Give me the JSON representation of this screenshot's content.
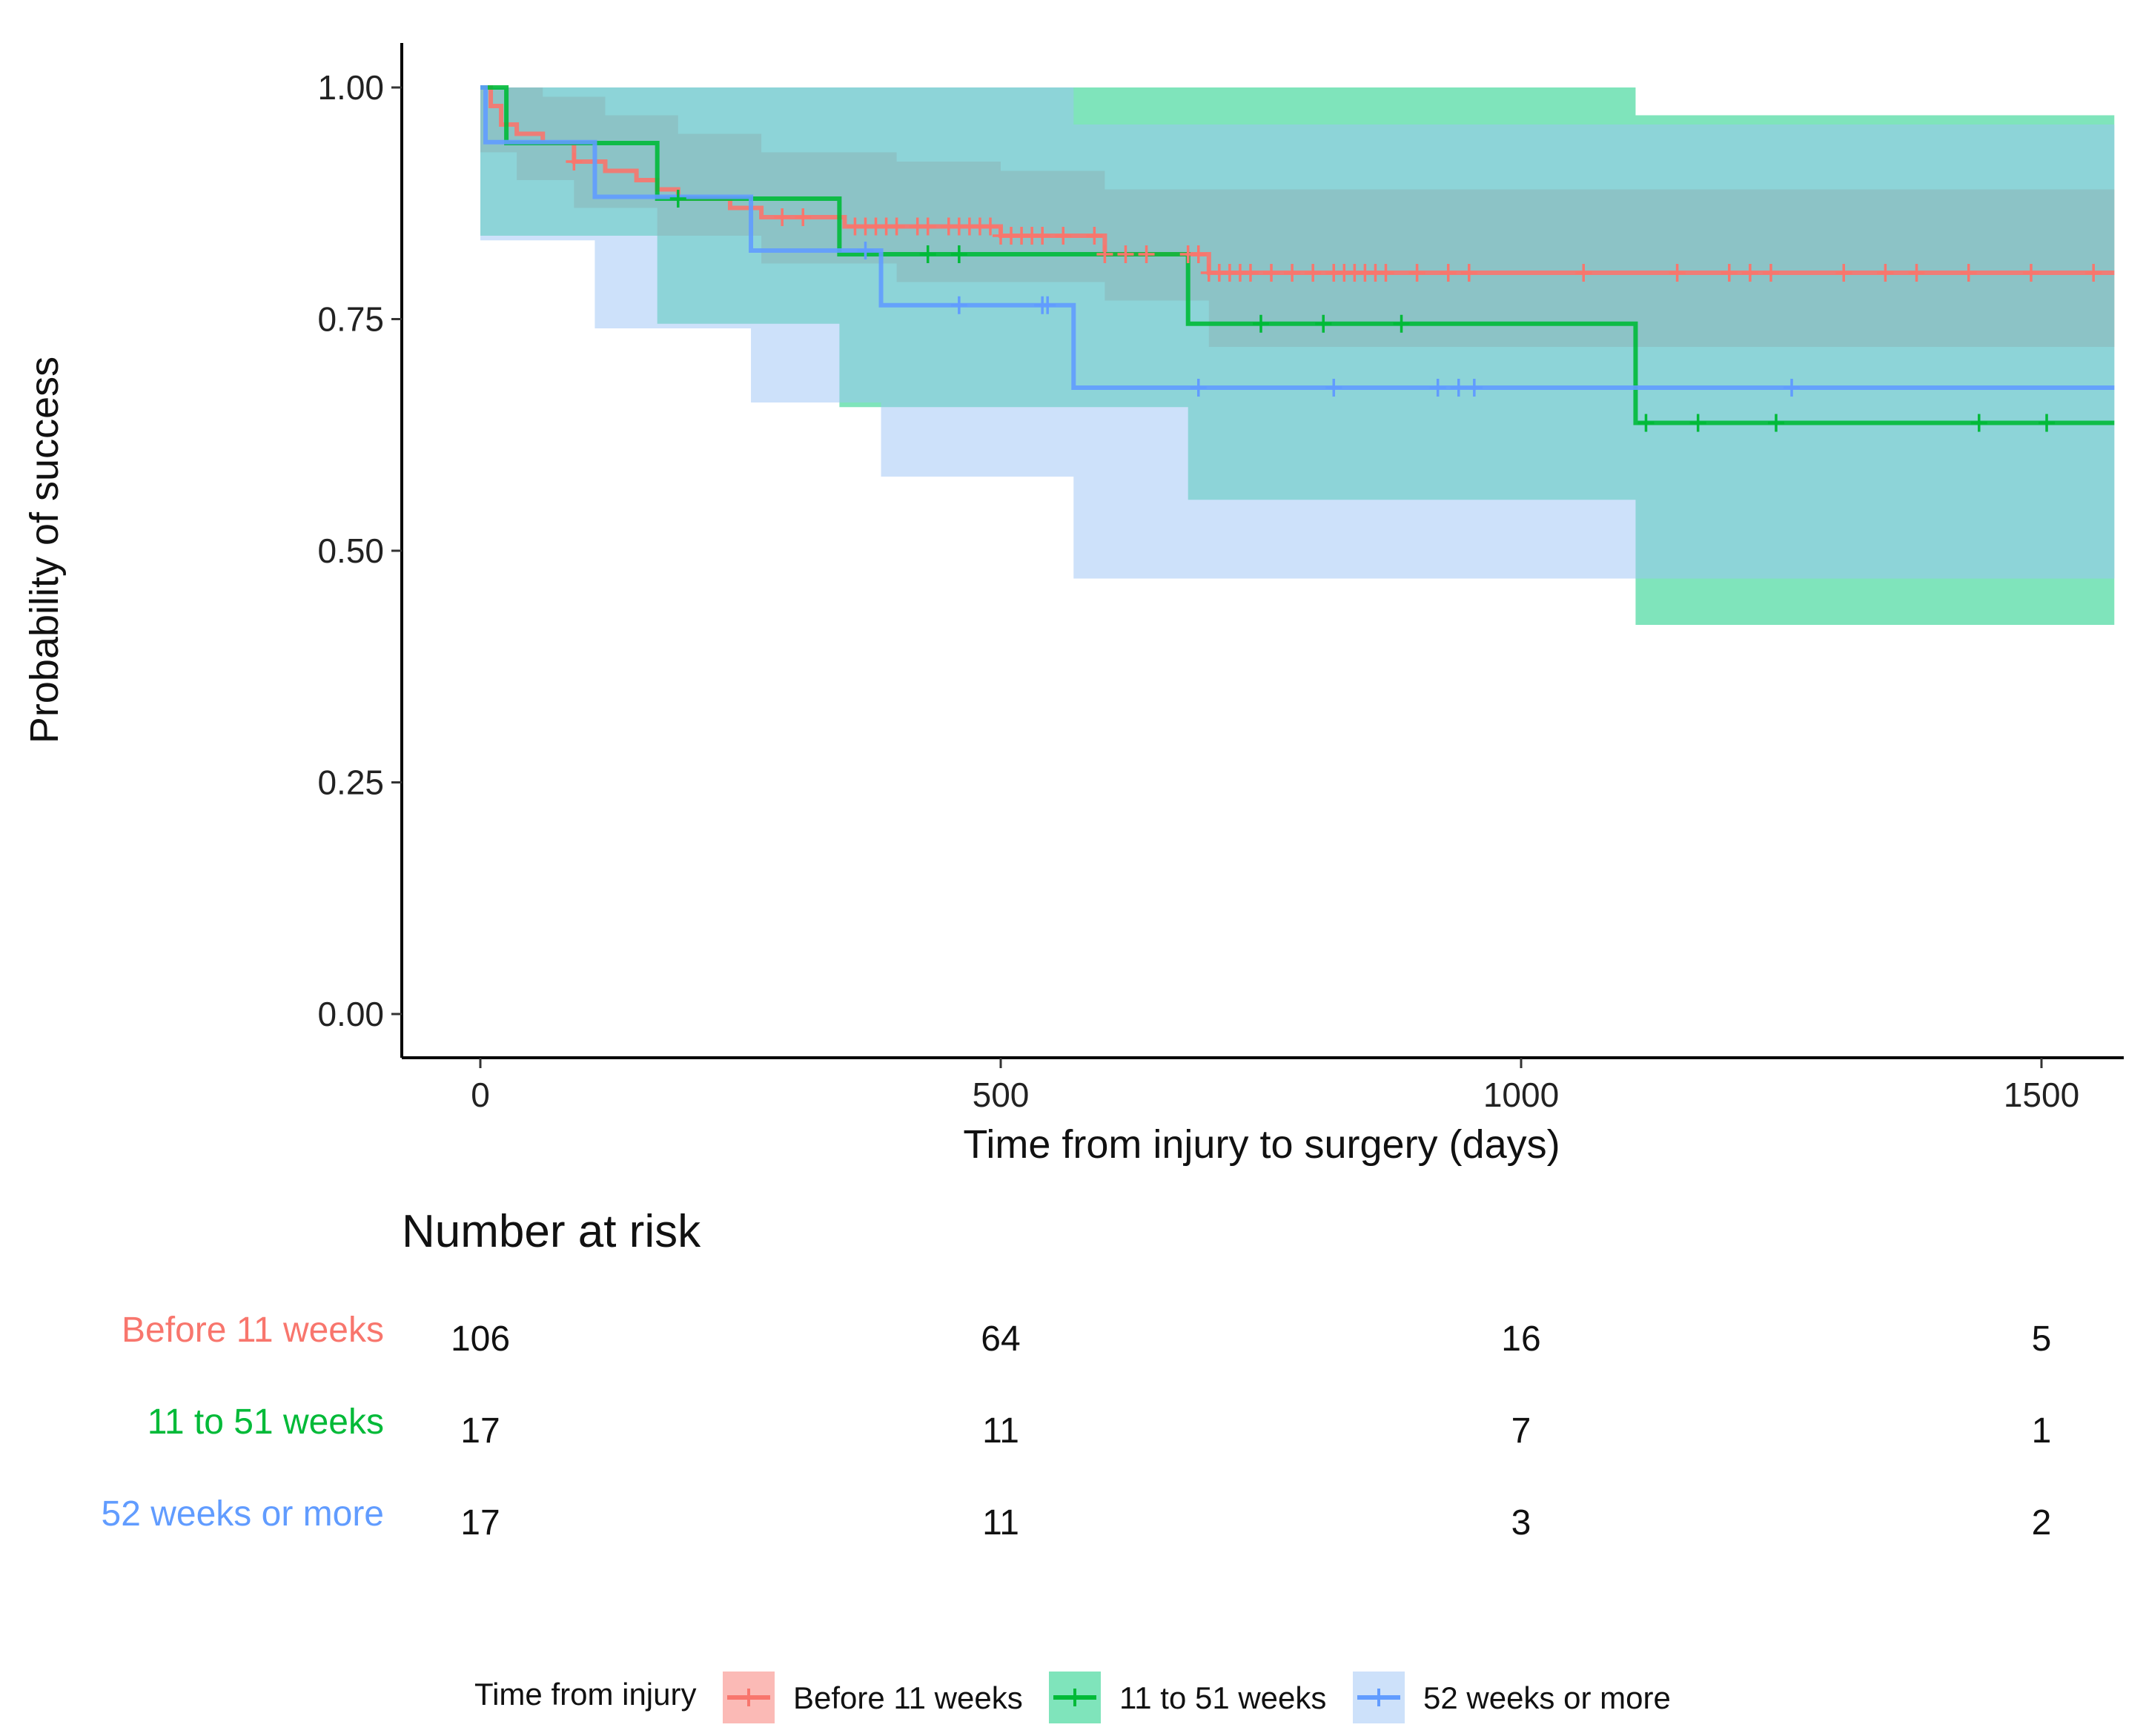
{
  "chart_data": {
    "type": "line",
    "subtype": "kaplan-meier",
    "xlabel": "Time from injury to surgery (days)",
    "ylabel": "Probability of success",
    "xlim": [
      -150,
      1580
    ],
    "ylim": [
      -0.05,
      1.05
    ],
    "xticks": [
      0,
      500,
      1000,
      1500
    ],
    "xtick_labels": [
      "0",
      "500",
      "1000",
      "1500"
    ],
    "yticks": [
      0,
      0.25,
      0.5,
      0.75,
      1.0
    ],
    "ytick_labels": [
      "0.00",
      "0.25",
      "0.50",
      "0.75",
      "1.00"
    ],
    "grid": false,
    "legend": {
      "title": "Time from injury",
      "position": "bottom",
      "labels": [
        "Before 11 weeks",
        "11 to 51 weeks",
        "52 weeks or more"
      ]
    },
    "colors": {
      "Before 11 weeks": "#F8766D",
      "11 to 51 weeks": "#00BA38",
      "52 weeks or more": "#619CFF"
    },
    "series": [
      {
        "name": "Before 11 weeks",
        "color": "#F8766D",
        "band_color": "#F8766D",
        "steps": [
          [
            0,
            1.0
          ],
          [
            10,
            0.98
          ],
          [
            20,
            0.96
          ],
          [
            35,
            0.95
          ],
          [
            60,
            0.94
          ],
          [
            90,
            0.92
          ],
          [
            120,
            0.91
          ],
          [
            150,
            0.9
          ],
          [
            170,
            0.89
          ],
          [
            190,
            0.88
          ],
          [
            240,
            0.87
          ],
          [
            270,
            0.86
          ],
          [
            350,
            0.85
          ],
          [
            400,
            0.85
          ],
          [
            500,
            0.84
          ],
          [
            600,
            0.82
          ],
          [
            700,
            0.8
          ],
          [
            1570,
            0.8
          ]
        ],
        "lower": [
          [
            0,
            0.93
          ],
          [
            35,
            0.9
          ],
          [
            90,
            0.87
          ],
          [
            170,
            0.84
          ],
          [
            270,
            0.81
          ],
          [
            400,
            0.79
          ],
          [
            500,
            0.79
          ],
          [
            600,
            0.77
          ],
          [
            700,
            0.72
          ],
          [
            1570,
            0.72
          ]
        ],
        "upper": [
          [
            0,
            1.0
          ],
          [
            60,
            0.99
          ],
          [
            120,
            0.97
          ],
          [
            190,
            0.95
          ],
          [
            270,
            0.93
          ],
          [
            400,
            0.92
          ],
          [
            500,
            0.91
          ],
          [
            600,
            0.89
          ],
          [
            700,
            0.89
          ],
          [
            1570,
            0.89
          ]
        ],
        "censored_x": [
          90,
          290,
          310,
          360,
          370,
          380,
          390,
          400,
          420,
          430,
          450,
          460,
          470,
          480,
          490,
          500,
          510,
          520,
          530,
          540,
          560,
          590,
          600,
          620,
          640,
          680,
          690,
          700,
          710,
          720,
          730,
          740,
          760,
          780,
          800,
          820,
          830,
          840,
          850,
          860,
          870,
          900,
          930,
          950,
          1060,
          1150,
          1200,
          1220,
          1240,
          1310,
          1350,
          1380,
          1430,
          1490,
          1550
        ]
      },
      {
        "name": "11 to 51 weeks",
        "color": "#00BA38",
        "band_color": "#00C978",
        "steps": [
          [
            0,
            1.0
          ],
          [
            25,
            0.94
          ],
          [
            170,
            0.88
          ],
          [
            345,
            0.82
          ],
          [
            680,
            0.745
          ],
          [
            1110,
            0.638
          ],
          [
            1570,
            0.638
          ]
        ],
        "lower": [
          [
            0,
            0.84
          ],
          [
            25,
            0.84
          ],
          [
            170,
            0.745
          ],
          [
            345,
            0.655
          ],
          [
            680,
            0.555
          ],
          [
            1110,
            0.42
          ],
          [
            1570,
            0.42
          ]
        ],
        "upper": [
          [
            0,
            1.0
          ],
          [
            570,
            1.0
          ],
          [
            1110,
            0.97
          ],
          [
            1570,
            0.97
          ]
        ],
        "censored_x": [
          190,
          430,
          460,
          750,
          810,
          885,
          1120,
          1170,
          1245,
          1440,
          1505
        ]
      },
      {
        "name": "52 weeks or more",
        "color": "#619CFF",
        "band_color": "#9CC3F5",
        "steps": [
          [
            0,
            1.0
          ],
          [
            5,
            0.941
          ],
          [
            110,
            0.882
          ],
          [
            260,
            0.824
          ],
          [
            385,
            0.765
          ],
          [
            570,
            0.676
          ],
          [
            1570,
            0.676
          ]
        ],
        "lower": [
          [
            0,
            0.835
          ],
          [
            110,
            0.74
          ],
          [
            260,
            0.66
          ],
          [
            385,
            0.58
          ],
          [
            570,
            0.47
          ],
          [
            1570,
            0.47
          ]
        ],
        "upper": [
          [
            0,
            1.0
          ],
          [
            570,
            0.96
          ],
          [
            1570,
            0.96
          ]
        ],
        "censored_x": [
          370,
          460,
          540,
          545,
          690,
          820,
          920,
          940,
          955,
          1260
        ]
      }
    ]
  },
  "risk_table": {
    "title": "Number at risk",
    "times": [
      0,
      500,
      1000,
      1500
    ],
    "rows": [
      {
        "label": "Before 11 weeks",
        "color": "#F8766D",
        "values": [
          "106",
          "64",
          "16",
          "5"
        ]
      },
      {
        "label": "11 to 51 weeks",
        "color": "#00BA38",
        "values": [
          "17",
          "11",
          "7",
          "1"
        ]
      },
      {
        "label": "52 weeks or more",
        "color": "#619CFF",
        "values": [
          "17",
          "11",
          "3",
          "2"
        ]
      }
    ]
  }
}
